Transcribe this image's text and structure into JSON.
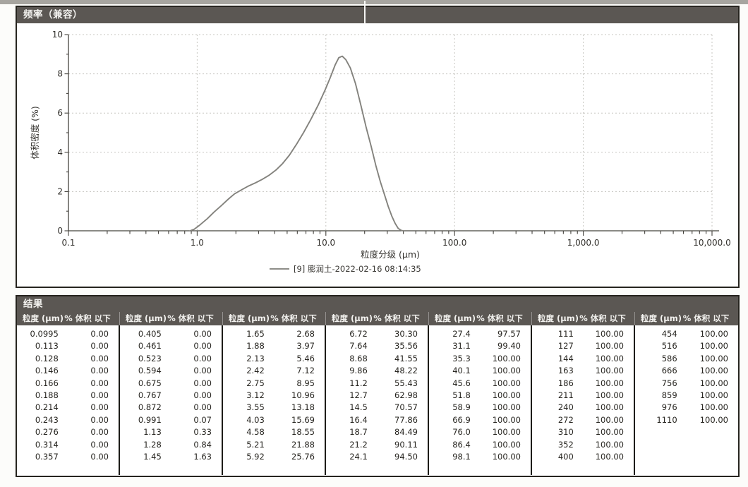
{
  "chart_data": {
    "type": "line",
    "title": "频率（兼容）",
    "xlabel": "粒度分级 (µm)",
    "ylabel": "体积密度 (%)",
    "x_scale": "log",
    "xlim": [
      0.1,
      10000
    ],
    "ylim": [
      0,
      10
    ],
    "x_ticks": [
      {
        "v": 0.1,
        "label": "0.1"
      },
      {
        "v": 1.0,
        "label": "1.0"
      },
      {
        "v": 10.0,
        "label": "10.0"
      },
      {
        "v": 100.0,
        "label": "100.0"
      },
      {
        "v": 1000.0,
        "label": "1,000.0"
      },
      {
        "v": 10000.0,
        "label": "10,000.0"
      }
    ],
    "y_ticks": [
      0,
      2,
      4,
      6,
      8,
      10
    ],
    "grid": true,
    "legend_position": "bottom-center",
    "legend": "[9] 膨润土-2022-02-16 08:14:35",
    "series": [
      {
        "name": "[9] 膨润土-2022-02-16 08:14:35",
        "color": "#83827d",
        "points": [
          [
            0.88,
            0
          ],
          [
            0.95,
            0.08
          ],
          [
            1.05,
            0.3
          ],
          [
            1.2,
            0.62
          ],
          [
            1.35,
            0.95
          ],
          [
            1.55,
            1.3
          ],
          [
            1.75,
            1.62
          ],
          [
            1.95,
            1.88
          ],
          [
            2.2,
            2.08
          ],
          [
            2.5,
            2.28
          ],
          [
            2.85,
            2.45
          ],
          [
            3.2,
            2.62
          ],
          [
            3.6,
            2.82
          ],
          [
            4.1,
            3.1
          ],
          [
            4.6,
            3.42
          ],
          [
            5.2,
            3.85
          ],
          [
            5.9,
            4.4
          ],
          [
            6.7,
            5.0
          ],
          [
            7.6,
            5.65
          ],
          [
            8.7,
            6.4
          ],
          [
            9.9,
            7.2
          ],
          [
            10.8,
            7.8
          ],
          [
            11.8,
            8.45
          ],
          [
            12.6,
            8.82
          ],
          [
            13.4,
            8.9
          ],
          [
            14.3,
            8.72
          ],
          [
            15.5,
            8.3
          ],
          [
            17,
            7.5
          ],
          [
            18.7,
            6.4
          ],
          [
            20.5,
            5.3
          ],
          [
            22.5,
            4.3
          ],
          [
            24.5,
            3.3
          ],
          [
            26.5,
            2.5
          ],
          [
            28.5,
            1.85
          ],
          [
            30.5,
            1.25
          ],
          [
            32.5,
            0.75
          ],
          [
            34.5,
            0.38
          ],
          [
            36.5,
            0.12
          ],
          [
            38.5,
            0.02
          ],
          [
            40,
            0
          ]
        ]
      }
    ]
  },
  "table": {
    "title": "结果",
    "col_headers": [
      "粒度 (µm)",
      "% 体积 以下"
    ],
    "groups": [
      [
        [
          "0.0995",
          "0.00"
        ],
        [
          "0.113",
          "0.00"
        ],
        [
          "0.128",
          "0.00"
        ],
        [
          "0.146",
          "0.00"
        ],
        [
          "0.166",
          "0.00"
        ],
        [
          "0.188",
          "0.00"
        ],
        [
          "0.214",
          "0.00"
        ],
        [
          "0.243",
          "0.00"
        ],
        [
          "0.276",
          "0.00"
        ],
        [
          "0.314",
          "0.00"
        ],
        [
          "0.357",
          "0.00"
        ]
      ],
      [
        [
          "0.405",
          "0.00"
        ],
        [
          "0.461",
          "0.00"
        ],
        [
          "0.523",
          "0.00"
        ],
        [
          "0.594",
          "0.00"
        ],
        [
          "0.675",
          "0.00"
        ],
        [
          "0.767",
          "0.00"
        ],
        [
          "0.872",
          "0.00"
        ],
        [
          "0.991",
          "0.07"
        ],
        [
          "1.13",
          "0.33"
        ],
        [
          "1.28",
          "0.84"
        ],
        [
          "1.45",
          "1.63"
        ]
      ],
      [
        [
          "1.65",
          "2.68"
        ],
        [
          "1.88",
          "3.97"
        ],
        [
          "2.13",
          "5.46"
        ],
        [
          "2.42",
          "7.12"
        ],
        [
          "2.75",
          "8.95"
        ],
        [
          "3.12",
          "10.96"
        ],
        [
          "3.55",
          "13.18"
        ],
        [
          "4.03",
          "15.69"
        ],
        [
          "4.58",
          "18.55"
        ],
        [
          "5.21",
          "21.88"
        ],
        [
          "5.92",
          "25.76"
        ]
      ],
      [
        [
          "6.72",
          "30.30"
        ],
        [
          "7.64",
          "35.56"
        ],
        [
          "8.68",
          "41.55"
        ],
        [
          "9.86",
          "48.22"
        ],
        [
          "11.2",
          "55.43"
        ],
        [
          "12.7",
          "62.98"
        ],
        [
          "14.5",
          "70.57"
        ],
        [
          "16.4",
          "77.86"
        ],
        [
          "18.7",
          "84.49"
        ],
        [
          "21.2",
          "90.11"
        ],
        [
          "24.1",
          "94.50"
        ]
      ],
      [
        [
          "27.4",
          "97.57"
        ],
        [
          "31.1",
          "99.40"
        ],
        [
          "35.3",
          "100.00"
        ],
        [
          "40.1",
          "100.00"
        ],
        [
          "45.6",
          "100.00"
        ],
        [
          "51.8",
          "100.00"
        ],
        [
          "58.9",
          "100.00"
        ],
        [
          "66.9",
          "100.00"
        ],
        [
          "76.0",
          "100.00"
        ],
        [
          "86.4",
          "100.00"
        ],
        [
          "98.1",
          "100.00"
        ]
      ],
      [
        [
          "111",
          "100.00"
        ],
        [
          "127",
          "100.00"
        ],
        [
          "144",
          "100.00"
        ],
        [
          "163",
          "100.00"
        ],
        [
          "186",
          "100.00"
        ],
        [
          "211",
          "100.00"
        ],
        [
          "240",
          "100.00"
        ],
        [
          "272",
          "100.00"
        ],
        [
          "310",
          "100.00"
        ],
        [
          "352",
          "100.00"
        ],
        [
          "400",
          "100.00"
        ]
      ],
      [
        [
          "454",
          "100.00"
        ],
        [
          "516",
          "100.00"
        ],
        [
          "586",
          "100.00"
        ],
        [
          "666",
          "100.00"
        ],
        [
          "756",
          "100.00"
        ],
        [
          "859",
          "100.00"
        ],
        [
          "976",
          "100.00"
        ],
        [
          "1110",
          "100.00"
        ]
      ]
    ]
  },
  "colors": {
    "header_bar": "#5b5753",
    "header_text": "#f3f2ef",
    "curve": "#83827d",
    "grid": "#c7c6c1",
    "axis": "#45433e",
    "panel_border": "#26241f"
  }
}
